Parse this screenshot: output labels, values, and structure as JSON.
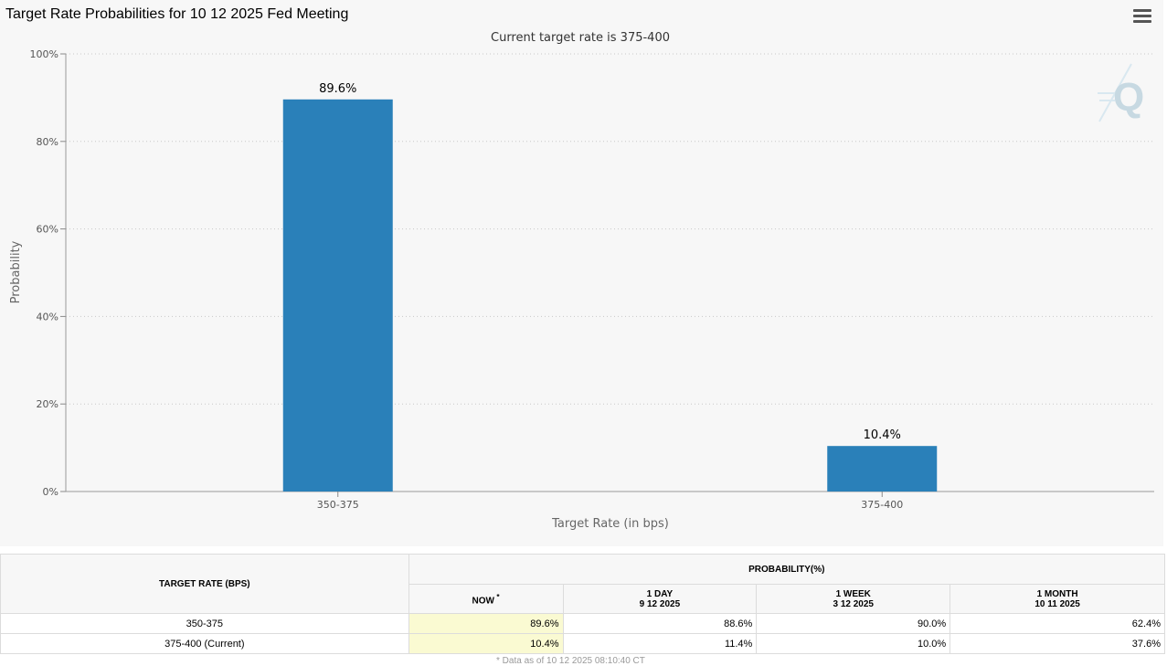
{
  "title": "Target Rate Probabilities for 10 12 2025 Fed Meeting",
  "menu_icon": "hamburger-menu-icon",
  "watermark": "Q",
  "chart_data": {
    "type": "bar",
    "subtitle": "Current target rate is 375-400",
    "categories": [
      "350-375",
      "375-400"
    ],
    "values": [
      89.6,
      10.4
    ],
    "data_labels": [
      "89.6%",
      "10.4%"
    ],
    "xlabel": "Target Rate (in bps)",
    "ylabel": "Probability",
    "ylim": [
      0,
      100
    ],
    "yticks": [
      "0%",
      "20%",
      "40%",
      "60%",
      "80%",
      "100%"
    ],
    "grid": true,
    "bar_color": "#2a80b9"
  },
  "table": {
    "target_rate_header": "TARGET RATE (BPS)",
    "probability_header": "PROBABILITY(%)",
    "columns": [
      {
        "line1": "NOW",
        "marker": "*",
        "line2": ""
      },
      {
        "line1": "1 DAY",
        "marker": "",
        "line2": "9 12 2025"
      },
      {
        "line1": "1 WEEK",
        "marker": "",
        "line2": "3 12 2025"
      },
      {
        "line1": "1 MONTH",
        "marker": "",
        "line2": "10 11 2025"
      }
    ],
    "rows": [
      {
        "rate": "350-375",
        "values": [
          "89.6%",
          "88.6%",
          "90.0%",
          "62.4%"
        ]
      },
      {
        "rate": "375-400 (Current)",
        "values": [
          "10.4%",
          "11.4%",
          "10.0%",
          "37.6%"
        ]
      }
    ]
  },
  "footnote": "* Data as of 10 12 2025 08:10:40 CT"
}
